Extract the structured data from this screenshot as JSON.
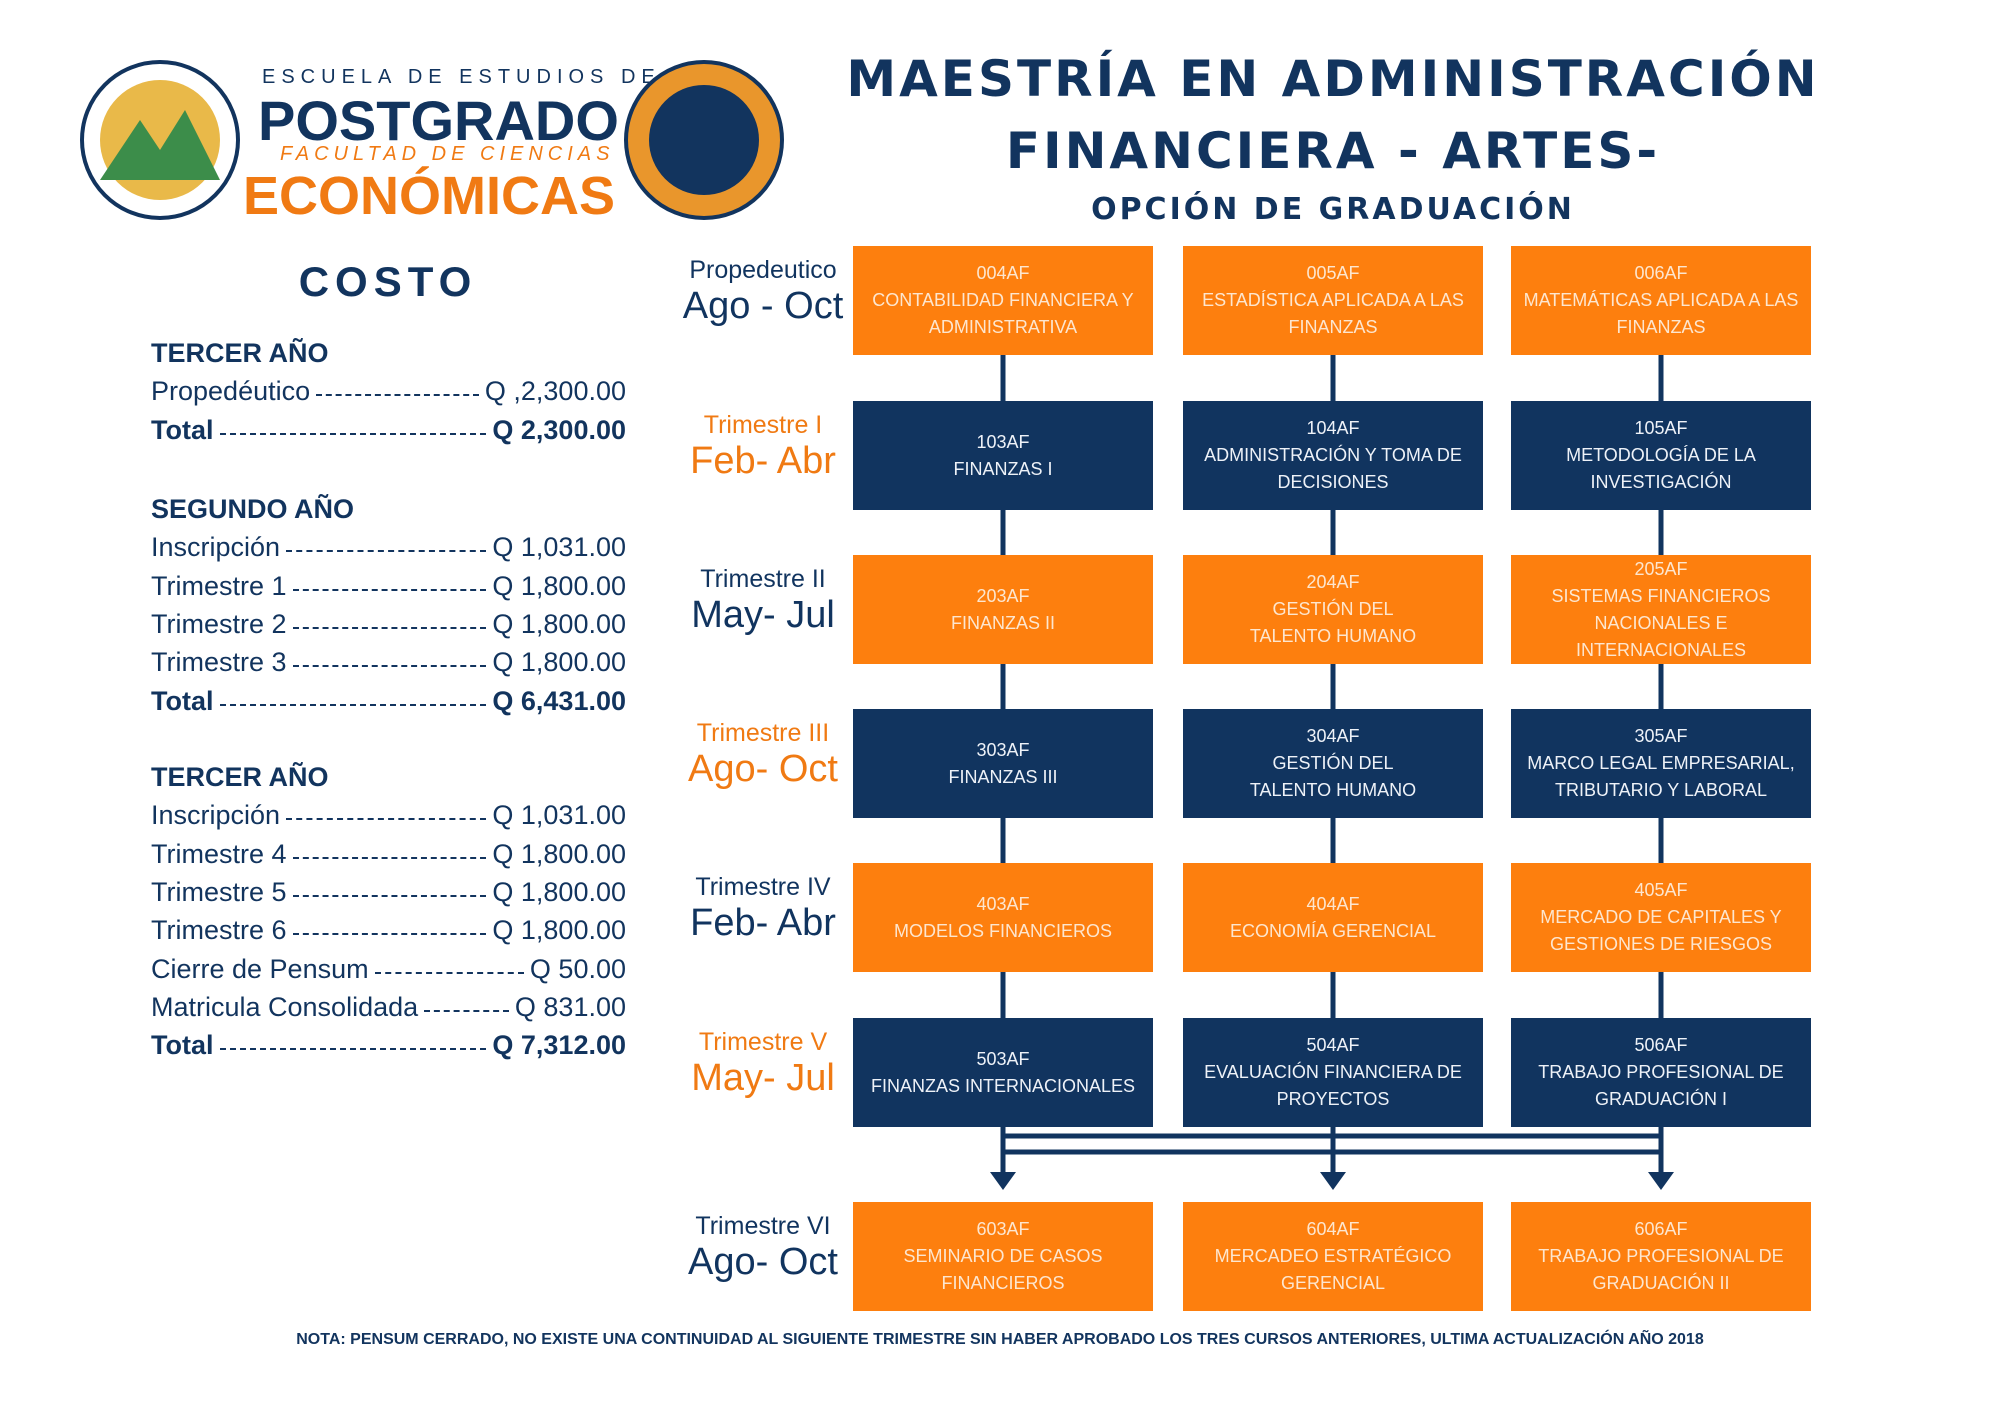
{
  "header": {
    "logo": [
      "ESCUELA DE ESTUDIOS DE",
      "POSTGRADO",
      "FACULTAD DE CIENCIAS",
      "ECONÓMICAS"
    ],
    "title": [
      "MAESTRÍA EN ADMINISTRACIÓN",
      "FINANCIERA - ARTES-"
    ],
    "subtitle": "OPCIÓN DE GRADUACIÓN"
  },
  "costs": {
    "title": "COSTO",
    "sections": [
      {
        "heading": "TERCER AÑO",
        "items": [
          {
            "label": "Propedéutico",
            "amount": "Q ,2,300.00"
          },
          {
            "label": "Total",
            "amount": "Q 2,300.00",
            "total": true
          }
        ]
      },
      {
        "heading": "SEGUNDO AÑO",
        "items": [
          {
            "label": "Inscripción",
            "amount": "Q 1,031.00"
          },
          {
            "label": "Trimestre 1",
            "amount": "Q 1,800.00"
          },
          {
            "label": "Trimestre 2",
            "amount": "Q 1,800.00"
          },
          {
            "label": "Trimestre 3",
            "amount": "Q 1,800.00"
          },
          {
            "label": "Total",
            "amount": "Q 6,431.00",
            "total": true
          }
        ]
      },
      {
        "heading": "TERCER AÑO",
        "items": [
          {
            "label": "Inscripción",
            "amount": "Q 1,031.00"
          },
          {
            "label": "Trimestre 4",
            "amount": "Q 1,800.00"
          },
          {
            "label": "Trimestre 5",
            "amount": "Q 1,800.00"
          },
          {
            "label": "Trimestre 6",
            "amount": "Q 1,800.00"
          },
          {
            "label": "Cierre de Pensum",
            "amount": "Q 50.00"
          },
          {
            "label": "Matricula Consolidada",
            "amount": "Q 831.00"
          },
          {
            "label": "Total",
            "amount": "Q 7,312.00",
            "total": true
          }
        ]
      }
    ]
  },
  "rows": [
    {
      "term": "Propedeutico",
      "period": "Ago - Oct",
      "color": "orange",
      "courses": [
        {
          "code": "004AF",
          "name": [
            "CONTABILIDAD FINANCIERA Y ADMINISTRATIVA"
          ]
        },
        {
          "code": "005AF",
          "name": [
            "ESTADÍSTICA APLICADA A LAS FINANZAS"
          ]
        },
        {
          "code": "006AF",
          "name": [
            "MATEMÁTICAS APLICADA A LAS FINANZAS"
          ]
        }
      ]
    },
    {
      "term": "Trimestre I",
      "period": "Feb- Abr",
      "color": "navy",
      "courses": [
        {
          "code": "103AF",
          "name": [
            "FINANZAS I"
          ]
        },
        {
          "code": "104AF",
          "name": [
            "ADMINISTRACIÓN Y TOMA DE DECISIONES"
          ]
        },
        {
          "code": "105AF",
          "name": [
            "METODOLOGÍA DE LA INVESTIGACIÓN"
          ]
        }
      ]
    },
    {
      "term": "Trimestre II",
      "period": "May- Jul",
      "color": "orange",
      "courses": [
        {
          "code": "203AF",
          "name": [
            "FINANZAS II"
          ]
        },
        {
          "code": "204AF",
          "name": [
            "GESTIÓN DEL",
            "TALENTO HUMANO"
          ]
        },
        {
          "code": "205AF",
          "name": [
            "SISTEMAS FINANCIEROS NACIONALES E INTERNACIONALES"
          ]
        }
      ]
    },
    {
      "term": "Trimestre III",
      "period": "Ago- Oct",
      "color": "navy",
      "courses": [
        {
          "code": "303AF",
          "name": [
            "FINANZAS III"
          ]
        },
        {
          "code": "304AF",
          "name": [
            "GESTIÓN DEL",
            "TALENTO HUMANO"
          ]
        },
        {
          "code": "305AF",
          "name": [
            "MARCO LEGAL EMPRESARIAL, TRIBUTARIO Y LABORAL"
          ]
        }
      ]
    },
    {
      "term": "Trimestre IV",
      "period": "Feb- Abr",
      "color": "orange",
      "courses": [
        {
          "code": "403AF",
          "name": [
            "MODELOS FINANCIEROS"
          ]
        },
        {
          "code": "404AF",
          "name": [
            "ECONOMÍA GERENCIAL"
          ]
        },
        {
          "code": "405AF",
          "name": [
            "MERCADO DE CAPITALES Y GESTIONES DE RIESGOS"
          ]
        }
      ]
    },
    {
      "term": "Trimestre V",
      "period": "May- Jul",
      "color": "navy",
      "courses": [
        {
          "code": "503AF",
          "name": [
            "FINANZAS INTERNACIONALES"
          ]
        },
        {
          "code": "504AF",
          "name": [
            "EVALUACIÓN FINANCIERA DE PROYECTOS"
          ]
        },
        {
          "code": "506AF",
          "name": [
            "TRABAJO PROFESIONAL DE GRADUACIÓN I"
          ]
        }
      ]
    },
    {
      "term": "Trimestre VI",
      "period": "Ago- Oct",
      "color": "orange",
      "courses": [
        {
          "code": "603AF",
          "name": [
            "SEMINARIO DE CASOS FINANCIEROS"
          ]
        },
        {
          "code": "604AF",
          "name": [
            "MERCADEO ESTRATÉGICO GERENCIAL"
          ]
        },
        {
          "code": "606AF",
          "name": [
            "TRABAJO PROFESIONAL DE GRADUACIÓN II"
          ]
        }
      ]
    }
  ],
  "note": "NOTA: PENSUM CERRADO, NO EXISTE UNA CONTINUIDAD AL SIGUIENTE TRIMESTRE SIN HABER APROBADO LOS TRES CURSOS ANTERIORES, ULTIMA ACTUALIZACIÓN AÑO 2018"
}
